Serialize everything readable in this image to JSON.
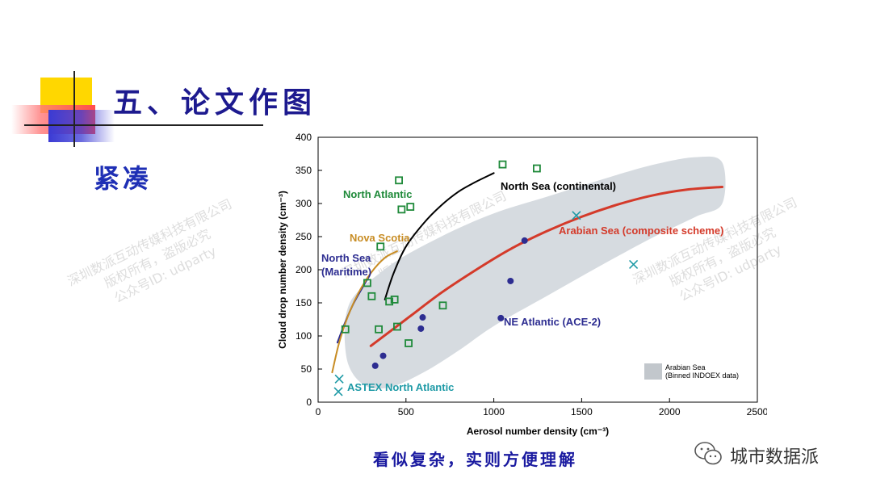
{
  "slide": {
    "title": "五、论文作图",
    "subtitle": "紧凑",
    "caption": "看似复杂，实则方便理解",
    "brand": "城市数据派",
    "brand_icon": "wechat-icon",
    "watermark_lines": [
      "深圳数派互动传媒科技有限公司",
      "版权所有，盗版必究",
      "公众号ID: udparty"
    ],
    "colors": {
      "title": "#1d1a8f",
      "deco_yellow": "#ffd700",
      "deco_red": "#ff4d4d",
      "deco_blue": "#3a3ad4"
    }
  },
  "chart_data": {
    "type": "scatter",
    "xlabel": "Aerosol number density (cm⁻³)",
    "ylabel": "Cloud drop number density (cm⁻³)",
    "xlim": [
      0,
      2500
    ],
    "ylim": [
      0,
      400
    ],
    "x_ticks": [
      0,
      500,
      1000,
      1500,
      2000,
      2500
    ],
    "y_ticks": [
      0,
      50,
      100,
      150,
      200,
      250,
      300,
      350,
      400
    ],
    "background_band": {
      "label": "Arabian Sea (Binned INDOEX data)",
      "legend_lines": [
        "Arabian Sea",
        "(Binned INDOEX data)"
      ],
      "color": "#d6dbe0",
      "upper": [
        [
          180,
          150
        ],
        [
          400,
          205
        ],
        [
          700,
          250
        ],
        [
          1000,
          285
        ],
        [
          1300,
          310
        ],
        [
          1600,
          335
        ],
        [
          1900,
          358
        ],
        [
          2150,
          370
        ],
        [
          2300,
          362
        ]
      ],
      "lower": [
        [
          2300,
          300
        ],
        [
          2150,
          280
        ],
        [
          1900,
          248
        ],
        [
          1600,
          205
        ],
        [
          1300,
          160
        ],
        [
          1000,
          115
        ],
        [
          800,
          78
        ],
        [
          600,
          45
        ],
        [
          400,
          22
        ],
        [
          250,
          28
        ],
        [
          160,
          70
        ]
      ]
    },
    "series": [
      {
        "name": "North Atlantic",
        "marker": "square",
        "color": "#1f8a3a",
        "points": [
          [
            155,
            110
          ],
          [
            280,
            180
          ],
          [
            305,
            160
          ],
          [
            345,
            110
          ],
          [
            355,
            235
          ],
          [
            405,
            152
          ],
          [
            435,
            155
          ],
          [
            450,
            114
          ],
          [
            460,
            335
          ],
          [
            475,
            291
          ],
          [
            525,
            295
          ],
          [
            515,
            89
          ],
          [
            710,
            146
          ],
          [
            1050,
            359
          ],
          [
            1245,
            353
          ]
        ]
      },
      {
        "name": "NE Atlantic (ACE-2)",
        "marker": "circle",
        "color": "#2d2d91",
        "points": [
          [
            325,
            55
          ],
          [
            370,
            70
          ],
          [
            585,
            111
          ],
          [
            595,
            128
          ],
          [
            1040,
            127
          ],
          [
            1095,
            183
          ],
          [
            1175,
            244
          ]
        ]
      },
      {
        "name": "ASTEX North Atlantic",
        "marker": "x",
        "color": "#1e9aa6",
        "points": [
          [
            120,
            35
          ],
          [
            115,
            16
          ],
          [
            1470,
            282
          ],
          [
            1795,
            208
          ]
        ]
      },
      {
        "name": "North Sea (continental)",
        "marker": "line",
        "color": "#000000",
        "points": [
          [
            380,
            155
          ],
          [
            430,
            195
          ],
          [
            500,
            235
          ],
          [
            600,
            270
          ],
          [
            700,
            297
          ],
          [
            800,
            318
          ],
          [
            900,
            333
          ],
          [
            1000,
            346
          ]
        ]
      },
      {
        "name": "Arabian Sea (composite scheme)",
        "marker": "line",
        "color": "#d43a2a",
        "points": [
          [
            300,
            85
          ],
          [
            500,
            125
          ],
          [
            700,
            165
          ],
          [
            900,
            200
          ],
          [
            1100,
            232
          ],
          [
            1300,
            258
          ],
          [
            1500,
            280
          ],
          [
            1700,
            298
          ],
          [
            1900,
            312
          ],
          [
            2100,
            321
          ],
          [
            2300,
            325
          ]
        ]
      },
      {
        "name": "North Sea (Maritime)",
        "marker": "line",
        "color": "#2d2d91",
        "points": [
          [
            110,
            90
          ],
          [
            150,
            118
          ],
          [
            200,
            148
          ],
          [
            250,
            172
          ],
          [
            290,
            190
          ]
        ]
      },
      {
        "name": "Nova Scotia",
        "marker": "line",
        "color": "#c88d25",
        "points": [
          [
            80,
            45
          ],
          [
            120,
            90
          ],
          [
            170,
            130
          ],
          [
            230,
            165
          ],
          [
            300,
            195
          ],
          [
            380,
            218
          ],
          [
            450,
            228
          ]
        ]
      }
    ]
  }
}
